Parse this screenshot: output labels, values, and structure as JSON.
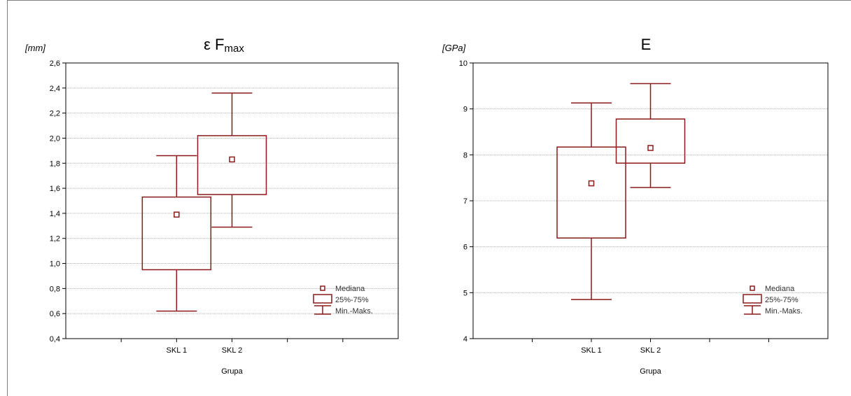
{
  "chart_data": [
    {
      "type": "box",
      "title": "ε F",
      "title_subscript": "max",
      "ylabel": "[mm]",
      "xlabel": "Grupa",
      "ylim": [
        0.4,
        2.6
      ],
      "ytick_step": 0.2,
      "ytick_labels": [
        "0,4",
        "0,6",
        "0,8",
        "1,0",
        "1,2",
        "1,4",
        "1,6",
        "1,8",
        "2,0",
        "2,2",
        "2,4",
        "2,6"
      ],
      "categories": [
        "SKL 1",
        "SKL 2"
      ],
      "boxes": [
        {
          "min": 0.62,
          "q1": 0.95,
          "median": 1.39,
          "q3": 1.53,
          "max": 1.86
        },
        {
          "min": 1.29,
          "q1": 1.55,
          "median": 1.83,
          "q3": 2.02,
          "max": 2.36
        }
      ],
      "grid": true,
      "legend_position": "bottom-right"
    },
    {
      "type": "box",
      "title": "E",
      "title_subscript": "",
      "ylabel": "[GPa]",
      "xlabel": "Grupa",
      "ylim": [
        4,
        10
      ],
      "ytick_step": 1,
      "ytick_labels": [
        "4",
        "5",
        "6",
        "7",
        "8",
        "9",
        "10"
      ],
      "categories": [
        "SKL 1",
        "SKL 2"
      ],
      "boxes": [
        {
          "min": 4.85,
          "q1": 6.19,
          "median": 7.38,
          "q3": 8.17,
          "max": 9.13
        },
        {
          "min": 7.29,
          "q1": 7.82,
          "median": 8.15,
          "q3": 8.78,
          "max": 9.55
        }
      ],
      "grid": true,
      "legend_position": "bottom-right"
    }
  ],
  "legend": {
    "median": "Mediana",
    "box": "25%-75%",
    "whisker": "Min.-Maks."
  },
  "colors": {
    "box": "#8b1a1a",
    "grid": "#b0b0b0",
    "axis": "#000000"
  }
}
